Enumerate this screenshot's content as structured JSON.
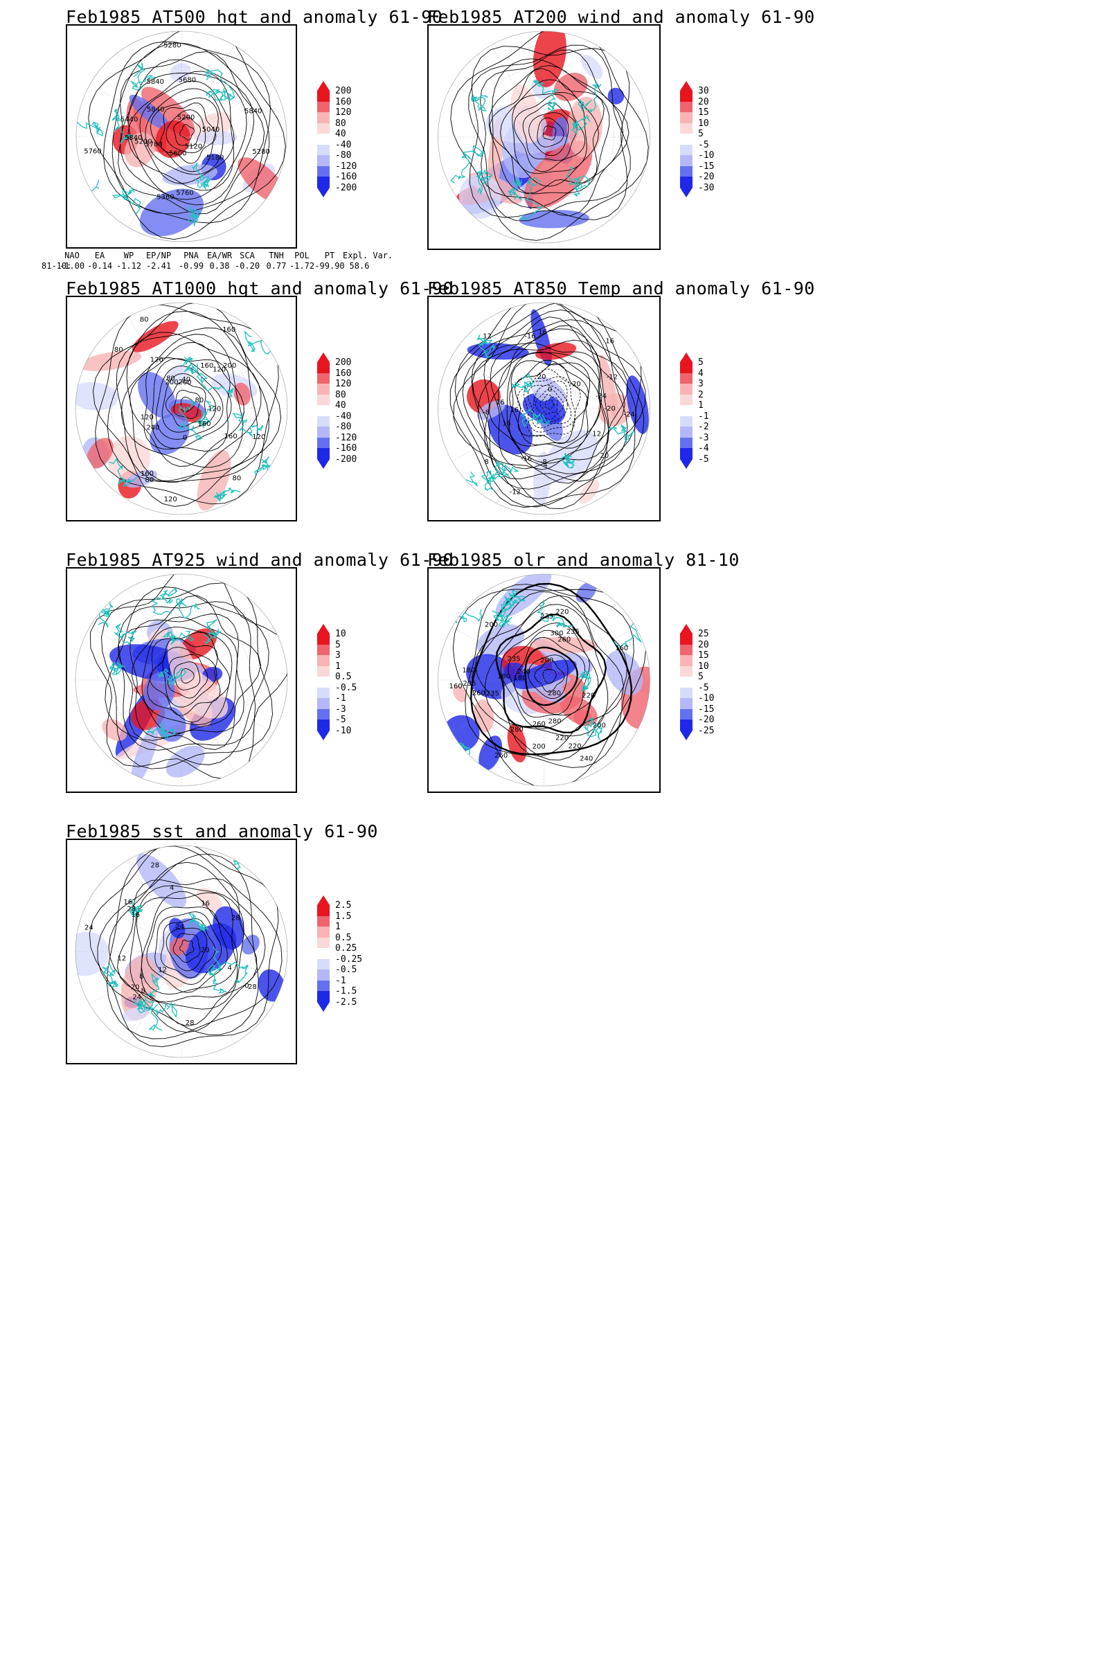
{
  "panels": [
    {
      "id": "p1",
      "title": "Feb1985 AT500 hgt and anomaly 61-90",
      "contour_labels": [
        "5840",
        "5780",
        "5840",
        "5760",
        "5280",
        "5280",
        "5040",
        "5120",
        "5200",
        "5200",
        "5840",
        "5180",
        "5360",
        "5440",
        "5600",
        "5680",
        "5760",
        "5840"
      ],
      "colorbar": {
        "labels": [
          "200",
          "160",
          "120",
          "80",
          "40",
          "-40",
          "-80",
          "-120",
          "-160",
          "-200"
        ]
      }
    },
    {
      "id": "p2",
      "title": "Feb1985 AT200 wind and anomaly 61-90",
      "contour_labels": [],
      "colorbar": {
        "labels": [
          "30",
          "20",
          "15",
          "10",
          "5",
          "-5",
          "-10",
          "-15",
          "-20",
          "-30"
        ]
      }
    },
    {
      "id": "p3",
      "title": "Feb1985 AT1000 hgt and anomaly 61-90",
      "contour_labels": [
        "80",
        "120",
        "160",
        "40",
        "200",
        "80",
        "120",
        "160",
        "200",
        "120",
        "160",
        "240",
        "200",
        "0",
        "120",
        "160",
        "80",
        "120",
        "80",
        "160",
        "120",
        "80",
        "80"
      ],
      "colorbar": {
        "labels": [
          "200",
          "160",
          "120",
          "80",
          "40",
          "-40",
          "-80",
          "-120",
          "-160",
          "-200"
        ]
      }
    },
    {
      "id": "p4",
      "title": "Feb1985 AT850 Temp and anomaly 61-90",
      "contour_labels": [
        "16",
        "12",
        "8",
        "4",
        "0",
        "-8",
        "-12",
        "-16",
        "-20",
        "-24",
        "-20",
        "-24",
        "-16",
        "-12",
        "-8",
        "16",
        "20",
        "16",
        "16",
        "12",
        "16",
        "20"
      ],
      "colorbar": {
        "labels": [
          "5",
          "4",
          "3",
          "2",
          "1",
          "-1",
          "-2",
          "-3",
          "-4",
          "-5"
        ]
      }
    },
    {
      "id": "p5",
      "title": "Feb1985 AT925 wind and anomaly 61-90",
      "contour_labels": [],
      "colorbar": {
        "labels": [
          "10",
          "5",
          "3",
          "1",
          "0.5",
          "-0.5",
          "-1",
          "-3",
          "-5",
          "-10"
        ]
      }
    },
    {
      "id": "p6",
      "title": "Feb1985 olr and anomaly 81-10",
      "contour_labels": [
        "260",
        "220",
        "235",
        "200",
        "280",
        "235",
        "235",
        "240",
        "260",
        "200",
        "220",
        "180",
        "200",
        "180",
        "160",
        "200",
        "180",
        "160",
        "220",
        "235",
        "260",
        "280",
        "300",
        "280",
        "260",
        "235",
        "220",
        "240"
      ],
      "colorbar": {
        "labels": [
          "25",
          "20",
          "15",
          "10",
          "5",
          "-5",
          "-10",
          "-15",
          "-20",
          "-25"
        ]
      }
    },
    {
      "id": "p7",
      "title": "Feb1985 sst and anomaly 61-90",
      "contour_labels": [
        "28",
        "28",
        "24",
        "20",
        "16",
        "12",
        "8",
        "4",
        "0",
        "28",
        "16",
        "20",
        "24",
        "28",
        "12",
        "4",
        "8",
        "16",
        "24",
        "28"
      ],
      "colorbar": {
        "labels": [
          "2.5",
          "1.5",
          "1",
          "0.5",
          "0.25",
          "-0.25",
          "-0.5",
          "-1",
          "-1.5",
          "-2.5"
        ]
      }
    }
  ],
  "teleconnection_table": {
    "headers": [
      "NAO",
      "EA",
      "WP",
      "EP/NP",
      "PNA",
      "EA/WR",
      "SCA",
      "TNH",
      "POL",
      "PT",
      "Expl. Var."
    ],
    "row_label": "81-10:",
    "values": [
      "-1.00",
      "-0.14",
      "-1.12",
      "-2.41",
      "-0.99",
      "0.38",
      "-0.20",
      "0.77",
      "-1.72",
      "-99.90",
      "58.6"
    ]
  },
  "colors": {
    "coastline": "#20c0c0",
    "contour": "#000000",
    "red_strong": "#e8141e",
    "red_mid": "#f0646e",
    "red_light": "#f8b4b4",
    "red_faint": "#fbd8d8",
    "blue_faint": "#d8dcfb",
    "blue_light": "#b4b8f8",
    "blue_mid": "#6470f0",
    "blue_strong": "#1e28e8"
  }
}
